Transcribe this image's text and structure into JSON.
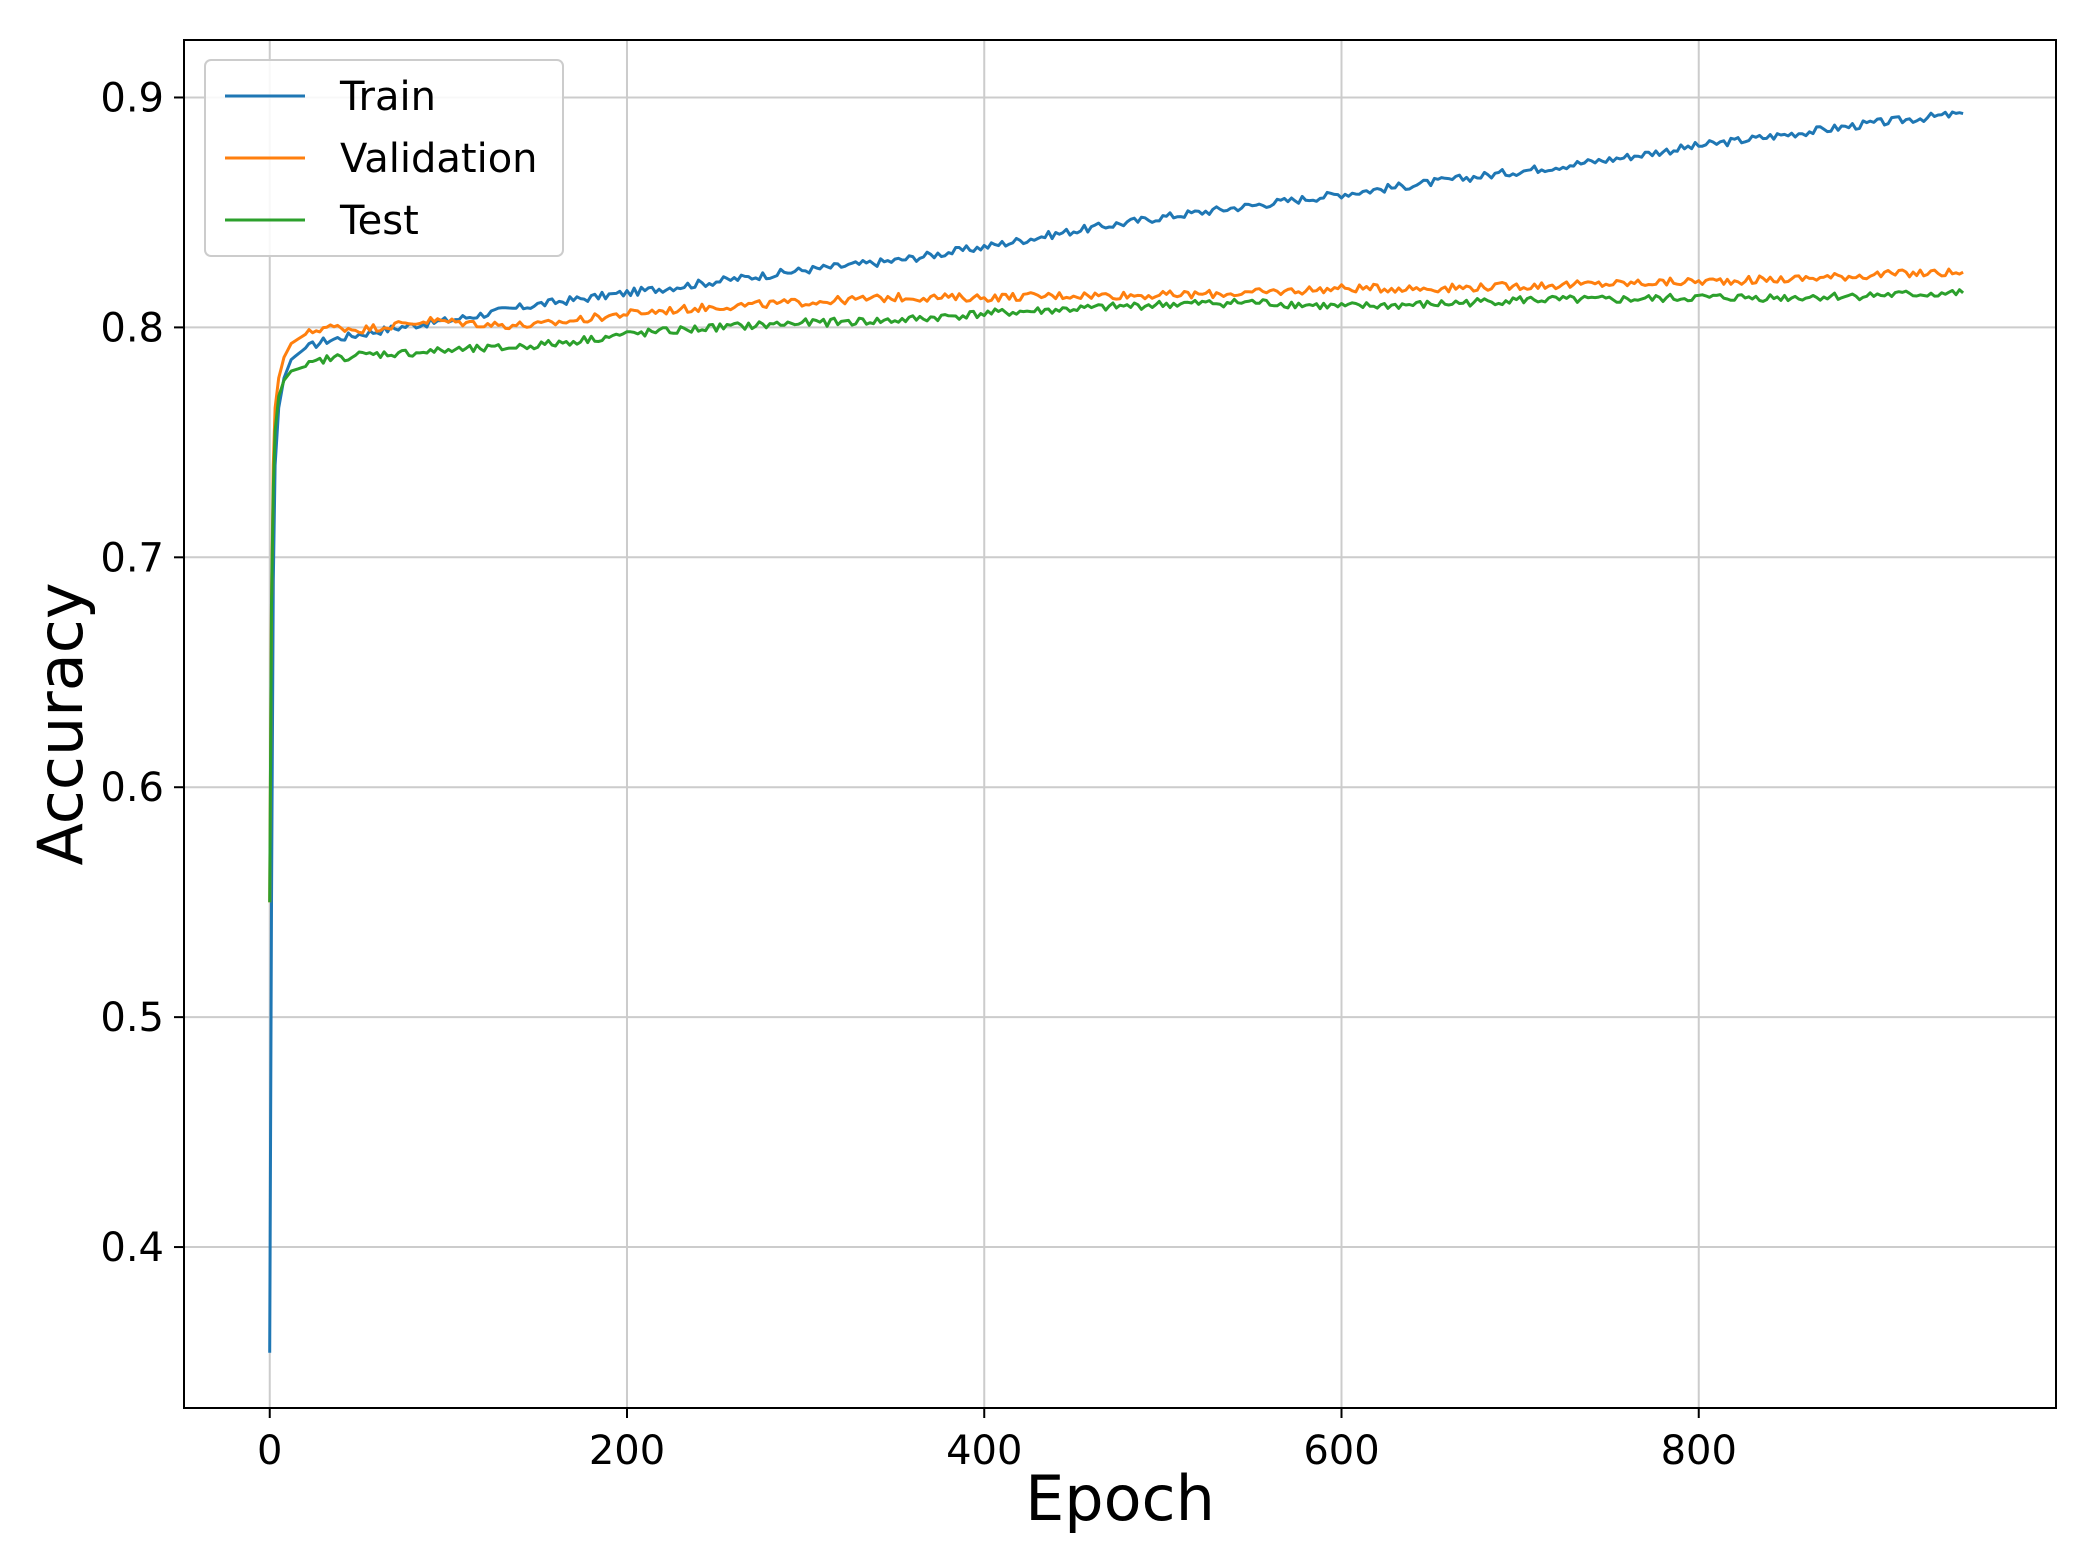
{
  "chart_data": {
    "type": "line",
    "xlabel": "Epoch",
    "ylabel": "Accuracy",
    "xlim": [
      -48,
      1000
    ],
    "ylim": [
      0.33,
      0.925
    ],
    "xticks": [
      0,
      200,
      400,
      600,
      800
    ],
    "yticks": [
      0.4,
      0.5,
      0.6,
      0.7,
      0.8,
      0.9
    ],
    "xtick_labels": [
      "0",
      "200",
      "400",
      "600",
      "800"
    ],
    "ytick_labels": [
      "0.4",
      "0.5",
      "0.6",
      "0.7",
      "0.8",
      "0.9"
    ],
    "grid": true,
    "legend_position": "top-left",
    "series": [
      {
        "name": "Train",
        "color": "#1f77b4",
        "x": [
          0,
          1,
          2,
          3,
          5,
          8,
          12,
          20,
          30,
          50,
          80,
          100,
          150,
          200,
          250,
          300,
          350,
          400,
          450,
          500,
          550,
          600,
          650,
          700,
          750,
          800,
          850,
          900,
          948
        ],
        "y": [
          0.354,
          0.55,
          0.69,
          0.74,
          0.765,
          0.778,
          0.786,
          0.791,
          0.794,
          0.797,
          0.801,
          0.803,
          0.81,
          0.815,
          0.82,
          0.825,
          0.829,
          0.835,
          0.842,
          0.848,
          0.853,
          0.858,
          0.863,
          0.868,
          0.873,
          0.879,
          0.884,
          0.889,
          0.893
        ]
      },
      {
        "name": "Validation",
        "color": "#ff7f0e",
        "x": [
          0,
          1,
          2,
          3,
          5,
          8,
          12,
          20,
          30,
          40,
          50,
          70,
          90,
          110,
          130,
          150,
          170,
          200,
          250,
          300,
          350,
          400,
          450,
          500,
          550,
          600,
          650,
          700,
          750,
          800,
          850,
          900,
          948
        ],
        "y": [
          0.55,
          0.68,
          0.74,
          0.765,
          0.778,
          0.787,
          0.793,
          0.797,
          0.8,
          0.8,
          0.799,
          0.801,
          0.803,
          0.802,
          0.801,
          0.801,
          0.803,
          0.806,
          0.809,
          0.811,
          0.813,
          0.813,
          0.814,
          0.814,
          0.815,
          0.817,
          0.817,
          0.818,
          0.819,
          0.82,
          0.821,
          0.823,
          0.824
        ]
      },
      {
        "name": "Test",
        "color": "#2ca02c",
        "x": [
          0,
          1,
          2,
          3,
          5,
          8,
          12,
          20,
          30,
          50,
          80,
          100,
          130,
          160,
          200,
          250,
          300,
          350,
          400,
          450,
          500,
          550,
          600,
          650,
          700,
          750,
          800,
          850,
          900,
          948
        ],
        "y": [
          0.55,
          0.68,
          0.73,
          0.755,
          0.77,
          0.777,
          0.781,
          0.783,
          0.786,
          0.788,
          0.789,
          0.79,
          0.791,
          0.793,
          0.797,
          0.8,
          0.802,
          0.803,
          0.806,
          0.808,
          0.81,
          0.811,
          0.809,
          0.81,
          0.812,
          0.812,
          0.813,
          0.813,
          0.814,
          0.815
        ]
      }
    ]
  }
}
